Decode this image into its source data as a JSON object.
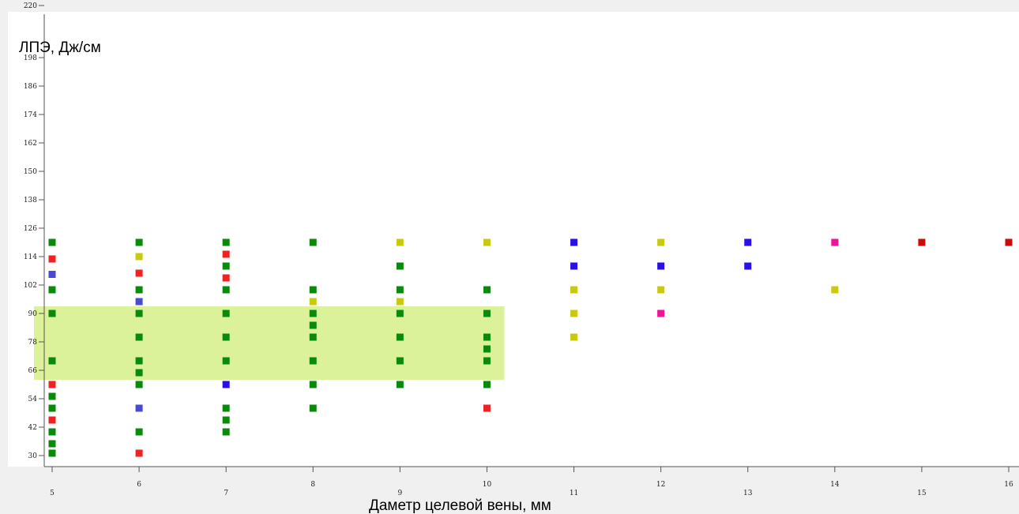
{
  "chart_data": {
    "type": "scatter",
    "title": "",
    "xlabel": "Даметр целевой вены, мм",
    "ylabel": "ЛПЭ, Дж/см",
    "xlim": [
      5,
      16
    ],
    "ylim": [
      28,
      220
    ],
    "x_ticks": [
      5,
      6,
      7,
      8,
      9,
      10,
      11,
      12,
      13,
      14,
      15,
      16
    ],
    "y_ticks": [
      30,
      42,
      54,
      66,
      78,
      90,
      102,
      114,
      126,
      138,
      150,
      162,
      174,
      186,
      198,
      220
    ],
    "grid": false,
    "highlight_region": {
      "x": [
        5,
        10.2
      ],
      "y": [
        62,
        93
      ],
      "color": "#dcf29a"
    },
    "colors": {
      "green": "#0a8a0a",
      "red": "#ee2222",
      "slate_blue": "#4a4ad0",
      "blue": "#2a10e8",
      "yellow": "#c9c910",
      "magenta": "#f0139a",
      "dark_red": "#cc0a0a"
    },
    "points": [
      {
        "x": 5,
        "y": 120,
        "color": "green"
      },
      {
        "x": 5,
        "y": 113,
        "color": "red"
      },
      {
        "x": 5,
        "y": 106.5,
        "color": "slate_blue"
      },
      {
        "x": 5,
        "y": 100,
        "color": "green"
      },
      {
        "x": 5,
        "y": 90,
        "color": "green"
      },
      {
        "x": 5,
        "y": 70,
        "color": "green"
      },
      {
        "x": 5,
        "y": 60,
        "color": "red"
      },
      {
        "x": 5,
        "y": 55,
        "color": "green"
      },
      {
        "x": 5,
        "y": 50,
        "color": "green"
      },
      {
        "x": 5,
        "y": 45,
        "color": "red"
      },
      {
        "x": 5,
        "y": 40,
        "color": "green"
      },
      {
        "x": 5,
        "y": 35,
        "color": "green"
      },
      {
        "x": 5,
        "y": 31,
        "color": "green"
      },
      {
        "x": 6,
        "y": 120,
        "color": "green"
      },
      {
        "x": 6,
        "y": 114,
        "color": "yellow"
      },
      {
        "x": 6,
        "y": 107,
        "color": "red"
      },
      {
        "x": 6,
        "y": 100,
        "color": "green"
      },
      {
        "x": 6,
        "y": 95,
        "color": "slate_blue"
      },
      {
        "x": 6,
        "y": 90,
        "color": "green"
      },
      {
        "x": 6,
        "y": 80,
        "color": "green"
      },
      {
        "x": 6,
        "y": 70,
        "color": "green"
      },
      {
        "x": 6,
        "y": 65,
        "color": "green"
      },
      {
        "x": 6,
        "y": 60,
        "color": "green"
      },
      {
        "x": 6,
        "y": 50,
        "color": "slate_blue"
      },
      {
        "x": 6,
        "y": 40,
        "color": "green"
      },
      {
        "x": 6,
        "y": 31,
        "color": "red"
      },
      {
        "x": 7,
        "y": 120,
        "color": "green"
      },
      {
        "x": 7,
        "y": 115,
        "color": "red"
      },
      {
        "x": 7,
        "y": 110,
        "color": "green"
      },
      {
        "x": 7,
        "y": 105,
        "color": "red"
      },
      {
        "x": 7,
        "y": 100,
        "color": "green"
      },
      {
        "x": 7,
        "y": 90,
        "color": "green"
      },
      {
        "x": 7,
        "y": 80,
        "color": "green"
      },
      {
        "x": 7,
        "y": 70,
        "color": "green"
      },
      {
        "x": 7,
        "y": 60,
        "color": "blue"
      },
      {
        "x": 7,
        "y": 50,
        "color": "green"
      },
      {
        "x": 7,
        "y": 45,
        "color": "green"
      },
      {
        "x": 7,
        "y": 40,
        "color": "green"
      },
      {
        "x": 8,
        "y": 120,
        "color": "green"
      },
      {
        "x": 8,
        "y": 100,
        "color": "green"
      },
      {
        "x": 8,
        "y": 95,
        "color": "yellow"
      },
      {
        "x": 8,
        "y": 90,
        "color": "green"
      },
      {
        "x": 8,
        "y": 85,
        "color": "green"
      },
      {
        "x": 8,
        "y": 80,
        "color": "green"
      },
      {
        "x": 8,
        "y": 70,
        "color": "green"
      },
      {
        "x": 8,
        "y": 60,
        "color": "green"
      },
      {
        "x": 8,
        "y": 50,
        "color": "green"
      },
      {
        "x": 9,
        "y": 120,
        "color": "yellow"
      },
      {
        "x": 9,
        "y": 110,
        "color": "green"
      },
      {
        "x": 9,
        "y": 100,
        "color": "green"
      },
      {
        "x": 9,
        "y": 95,
        "color": "yellow"
      },
      {
        "x": 9,
        "y": 90,
        "color": "green"
      },
      {
        "x": 9,
        "y": 80,
        "color": "green"
      },
      {
        "x": 9,
        "y": 70,
        "color": "green"
      },
      {
        "x": 9,
        "y": 60,
        "color": "green"
      },
      {
        "x": 10,
        "y": 120,
        "color": "yellow"
      },
      {
        "x": 10,
        "y": 100,
        "color": "green"
      },
      {
        "x": 10,
        "y": 90,
        "color": "green"
      },
      {
        "x": 10,
        "y": 80,
        "color": "green"
      },
      {
        "x": 10,
        "y": 75,
        "color": "green"
      },
      {
        "x": 10,
        "y": 70,
        "color": "green"
      },
      {
        "x": 10,
        "y": 60,
        "color": "green"
      },
      {
        "x": 10,
        "y": 50,
        "color": "red"
      },
      {
        "x": 11,
        "y": 120,
        "color": "blue"
      },
      {
        "x": 11,
        "y": 110,
        "color": "blue"
      },
      {
        "x": 11,
        "y": 100,
        "color": "yellow"
      },
      {
        "x": 11,
        "y": 90,
        "color": "yellow"
      },
      {
        "x": 11,
        "y": 80,
        "color": "yellow"
      },
      {
        "x": 12,
        "y": 120,
        "color": "yellow"
      },
      {
        "x": 12,
        "y": 110,
        "color": "blue"
      },
      {
        "x": 12,
        "y": 100,
        "color": "yellow"
      },
      {
        "x": 12,
        "y": 90,
        "color": "magenta"
      },
      {
        "x": 13,
        "y": 120,
        "color": "blue"
      },
      {
        "x": 13,
        "y": 110,
        "color": "blue"
      },
      {
        "x": 14,
        "y": 120,
        "color": "magenta"
      },
      {
        "x": 14,
        "y": 100,
        "color": "yellow"
      },
      {
        "x": 15,
        "y": 120,
        "color": "dark_red"
      },
      {
        "x": 16,
        "y": 120,
        "color": "dark_red"
      }
    ]
  }
}
